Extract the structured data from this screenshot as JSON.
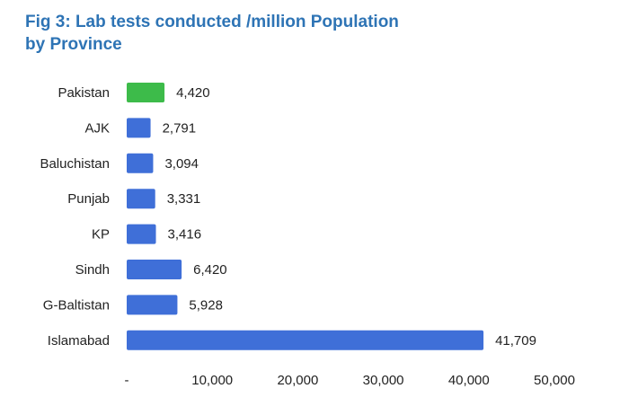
{
  "chart_data": {
    "type": "bar",
    "orientation": "horizontal",
    "title_line1": "Fig 3: Lab tests conducted /million Population",
    "title_line2": "by Province",
    "categories": [
      "Pakistan",
      "AJK",
      "Baluchistan",
      "Punjab",
      "KP",
      "Sindh",
      "G-Baltistan",
      "Islamabad"
    ],
    "values": [
      4420,
      2791,
      3094,
      3331,
      3416,
      6420,
      5928,
      41709
    ],
    "value_labels": [
      "4,420",
      "2,791",
      "3,094",
      "3,331",
      "3,416",
      "6,420",
      "5,928",
      "41,709"
    ],
    "bar_colors": [
      "#3dbb4a",
      "#3f6fd8",
      "#3f6fd8",
      "#3f6fd8",
      "#3f6fd8",
      "#3f6fd8",
      "#3f6fd8",
      "#3f6fd8"
    ],
    "xlim": [
      0,
      50000
    ],
    "x_ticks": [
      0,
      10000,
      20000,
      30000,
      40000,
      50000
    ],
    "x_tick_labels": [
      "-",
      "10,000",
      "20,000",
      "30,000",
      "40,000",
      "50,000"
    ],
    "grid": false,
    "legend": "none"
  }
}
